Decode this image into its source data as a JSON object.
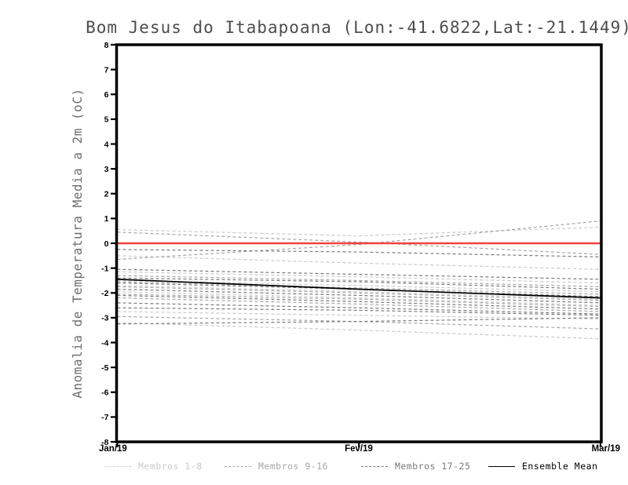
{
  "chart_data": {
    "type": "line",
    "title": "Bom Jesus do Itabapoana (Lon:-41.6822,Lat:-21.1449)",
    "ylabel": "Anomalia de Temperatura Media a 2m (oC)",
    "xlabel": "",
    "x_categories": [
      "Jan/19",
      "Fev/19",
      "Mar/19"
    ],
    "ylim": [
      -8,
      8
    ],
    "ytick_step": 1,
    "grid": false,
    "legend_position": "bottom",
    "colors": {
      "zero_line": "#ee453b",
      "members_1_8": "#cacaca",
      "members_9_16": "#a6a6a6",
      "members_17_25": "#7b7b7b",
      "ensemble_mean": "#000000",
      "frame": "#000000",
      "title": "#4d4d4d",
      "ylabel": "#6f6f6f"
    },
    "zero_line": {
      "value": 0
    },
    "ensemble_mean": {
      "name": "Ensemble Mean",
      "values": [
        -1.45,
        -1.85,
        -2.2
      ]
    },
    "member_groups": [
      {
        "name": "Membros 1-8",
        "color": "#cacaca",
        "members": [
          [
            0.55,
            0.3,
            0.65
          ],
          [
            -0.5,
            -0.8,
            -1.05
          ],
          [
            -1.15,
            -1.35,
            -1.6
          ],
          [
            -1.5,
            -1.7,
            -1.95
          ],
          [
            -1.7,
            -1.95,
            -2.25
          ],
          [
            -1.95,
            -2.2,
            -2.5
          ],
          [
            -2.75,
            -2.9,
            -3.05
          ],
          [
            -3.2,
            -3.5,
            -3.85
          ]
        ]
      },
      {
        "name": "Membros 9-16",
        "color": "#a6a6a6",
        "members": [
          [
            0.45,
            0.05,
            -0.45
          ],
          [
            -0.65,
            -0.05,
            0.9
          ],
          [
            -1.3,
            -1.5,
            -1.75
          ],
          [
            -1.55,
            -1.8,
            -2.05
          ],
          [
            -1.75,
            -2.0,
            -2.3
          ],
          [
            -2.05,
            -2.25,
            -2.55
          ],
          [
            -2.2,
            -2.45,
            -2.75
          ],
          [
            -2.95,
            -3.15,
            -3.45
          ]
        ]
      },
      {
        "name": "Membros 17-25",
        "color": "#7b7b7b",
        "members": [
          [
            -0.25,
            -0.35,
            -0.55
          ],
          [
            -1.05,
            -1.25,
            -1.45
          ],
          [
            -1.4,
            -1.55,
            -1.85
          ],
          [
            -1.6,
            -1.85,
            -2.15
          ],
          [
            -1.85,
            -2.1,
            -2.4
          ],
          [
            -2.1,
            -2.35,
            -2.65
          ],
          [
            -2.4,
            -2.6,
            -2.85
          ],
          [
            -2.6,
            -2.7,
            -2.9
          ],
          [
            -3.25,
            -3.15,
            -3.0
          ]
        ]
      }
    ],
    "legend": [
      {
        "label": "Membros 1-8",
        "color": "#cacaca",
        "style": "dashed"
      },
      {
        "label": "Membros 9-16",
        "color": "#a6a6a6",
        "style": "dashed"
      },
      {
        "label": "Membros 17-25",
        "color": "#7b7b7b",
        "style": "dashed"
      },
      {
        "label": "Ensemble Mean",
        "color": "#000000",
        "style": "solid"
      }
    ]
  }
}
